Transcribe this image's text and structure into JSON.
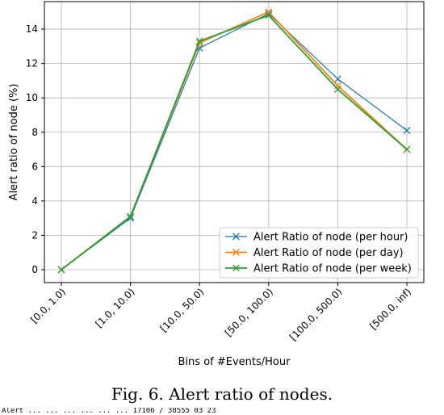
{
  "chart_data": {
    "type": "line",
    "categories": [
      "[0.0, 1.0)",
      "[1.0, 10.0)",
      "[10.0, 50.0)",
      "[50.0, 100.0)",
      "[100.0, 500.0)",
      "[500.0, inf)"
    ],
    "series": [
      {
        "name": "Alert Ratio of node (per hour)",
        "color": "#1f77b4",
        "values": [
          0.0,
          3.0,
          12.9,
          14.9,
          11.1,
          8.1
        ]
      },
      {
        "name": "Alert Ratio of node (per day)",
        "color": "#ff7f0e",
        "values": [
          0.0,
          3.1,
          13.2,
          15.0,
          10.7,
          7.0
        ]
      },
      {
        "name": "Alert Ratio of node (per week)",
        "color": "#2ca02c",
        "values": [
          0.0,
          3.1,
          13.3,
          14.8,
          10.5,
          7.0
        ]
      }
    ],
    "xlabel": "Bins of #Events/Hour",
    "ylabel": "Alert ratio of node (%)",
    "yticks": [
      0,
      2,
      4,
      6,
      8,
      10,
      12,
      14
    ],
    "ylim": [
      -0.75,
      15.6
    ],
    "grid": true,
    "legend_position": "bottom-right",
    "marker": "x"
  },
  "caption": "Fig. 6.   Alert ratio of nodes.",
  "footer_text": "Alert ... ... ... ... ... ... 17106 / 38555 03 23"
}
